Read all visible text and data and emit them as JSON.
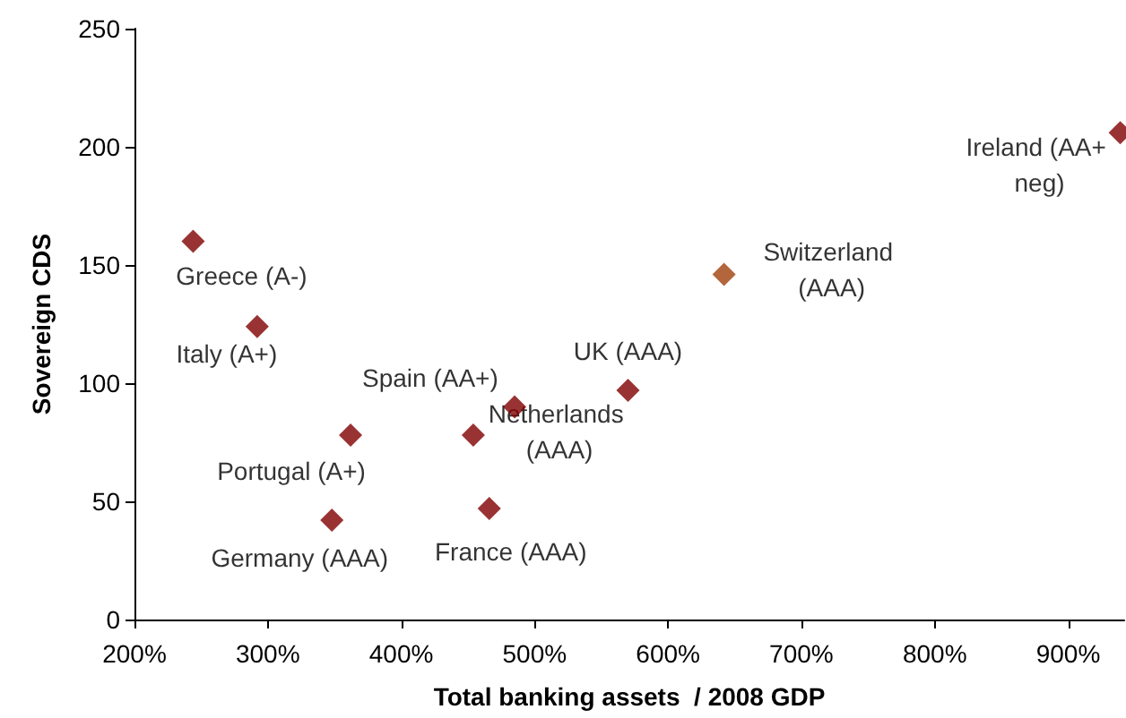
{
  "chart_data": {
    "type": "scatter",
    "xlabel": "Total banking assets  / 2008 GDP",
    "ylabel": "Sovereign CDS",
    "x": [
      244,
      292,
      362,
      348,
      454,
      485,
      466,
      570,
      642,
      939
    ],
    "values": [
      160,
      124,
      78,
      42,
      78,
      90,
      47,
      97,
      146,
      206
    ],
    "colors": [
      "#800000",
      "#800000",
      "#800000",
      "#800000",
      "#800000",
      "#800000",
      "#800000",
      "#800000",
      "#a0400a",
      "#800000"
    ],
    "marker": "diamond",
    "xlim": [
      200,
      942
    ],
    "xticks": [
      {
        "value": 200,
        "label": "200%"
      },
      {
        "value": 300,
        "label": "300%"
      },
      {
        "value": 400,
        "label": "400%"
      },
      {
        "value": 500,
        "label": "500%"
      },
      {
        "value": 600,
        "label": "600%"
      },
      {
        "value": 700,
        "label": "700%"
      },
      {
        "value": 800,
        "label": "800%"
      },
      {
        "value": 900,
        "label": "900%"
      }
    ],
    "ylim": [
      0,
      250
    ],
    "yticks": [
      0,
      50,
      100,
      150,
      200,
      250
    ],
    "grid": false,
    "annotations": [
      {
        "text": "Greece (A-)",
        "x": 244,
        "y": 160
      },
      {
        "text": "Italy (A+)",
        "x": 292,
        "y": 124
      },
      {
        "text": "Portugal (A+)",
        "x": 362,
        "y": 78
      },
      {
        "text": "Germany (AAA)",
        "x": 348,
        "y": 42
      },
      {
        "text": "Spain (AA+)",
        "x": 454,
        "y": 78
      },
      {
        "text": "Netherlands (AAA)",
        "x": 485,
        "y": 90
      },
      {
        "text": "France (AAA)",
        "x": 466,
        "y": 47
      },
      {
        "text": "UK (AAA)",
        "x": 570,
        "y": 97
      },
      {
        "text": "Switzerland (AAA)",
        "x": 642,
        "y": 146
      },
      {
        "text": "Ireland (AA+ neg)",
        "x": 939,
        "y": 206
      }
    ]
  }
}
